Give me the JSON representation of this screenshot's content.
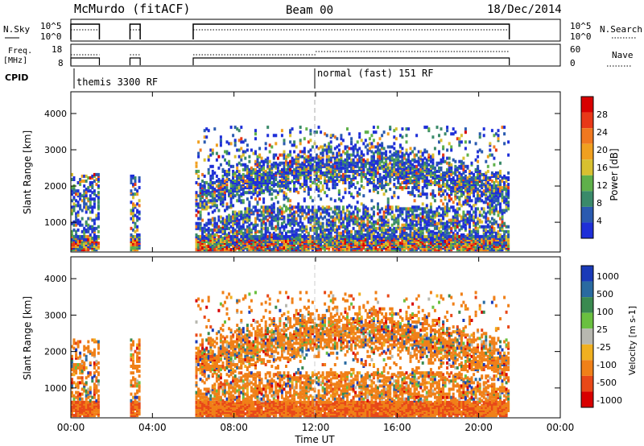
{
  "header": {
    "station": "McMurdo (fitACF)",
    "beam": "Beam 00",
    "date": "18/Dec/2014"
  },
  "param_panels": {
    "nsky_label": "N.Sky",
    "nsearch_label": "N.Search",
    "freq_label_1": "Freq.",
    "freq_label_2": "[MHz]",
    "nave_label": "Nave",
    "cpid_label": "CPID",
    "noise_ticks": [
      "10^5",
      "10^0"
    ],
    "noise_ticks_right": [
      "10^5",
      "10^0"
    ],
    "freq_ticks": [
      "18",
      "8"
    ],
    "nave_ticks": [
      "60",
      "0"
    ]
  },
  "cpid_modes": [
    {
      "label": "themis 3300 RF",
      "start_hour": 0
    },
    {
      "label": "normal (fast) 151 RF",
      "start_hour": 12
    }
  ],
  "colors": {
    "power": [
      "#1e2fd8",
      "#2a5ab0",
      "#3a8a6a",
      "#5fb04a",
      "#d8c030",
      "#f0a020",
      "#f07820",
      "#e83818",
      "#d80000"
    ],
    "velocity": [
      "#1a3ab8",
      "#2a6aa0",
      "#3a8a50",
      "#6ac040",
      "#b8b8b0",
      "#f0b020",
      "#f08018",
      "#e84818",
      "#d80000"
    ]
  },
  "chart_data": [
    {
      "type": "heatmap",
      "name": "power",
      "xlabel": "",
      "ylabel": "Slant Range [km]",
      "x_ticks": [],
      "y_ticks": [
        "1000",
        "2000",
        "3000",
        "4000"
      ],
      "xlim": [
        0,
        24
      ],
      "ylim": [
        180,
        4600
      ],
      "colorbar": {
        "label": "Power [dB]",
        "ticks": [
          "4",
          "8",
          "12",
          "16",
          "20",
          "24",
          "28"
        ],
        "range": [
          0,
          30
        ]
      },
      "data_windows_hours": [
        [
          0.0,
          1.4
        ],
        [
          2.9,
          3.4
        ],
        [
          6.0,
          21.5
        ]
      ]
    },
    {
      "type": "heatmap",
      "name": "velocity",
      "xlabel": "Time UT",
      "ylabel": "Slant Range [km]",
      "x_ticks": [
        "00:00",
        "04:00",
        "08:00",
        "12:00",
        "16:00",
        "20:00",
        "00:00"
      ],
      "y_ticks": [
        "1000",
        "2000",
        "3000",
        "4000"
      ],
      "xlim": [
        0,
        24
      ],
      "ylim": [
        180,
        4600
      ],
      "colorbar": {
        "label": "Velocity [m s-1]",
        "ticks": [
          "1000",
          "500",
          "100",
          "25",
          "-25",
          "-100",
          "-500",
          "-1000"
        ]
      },
      "data_windows_hours": [
        [
          0.0,
          1.4
        ],
        [
          2.9,
          3.4
        ],
        [
          6.0,
          21.5
        ]
      ]
    }
  ]
}
